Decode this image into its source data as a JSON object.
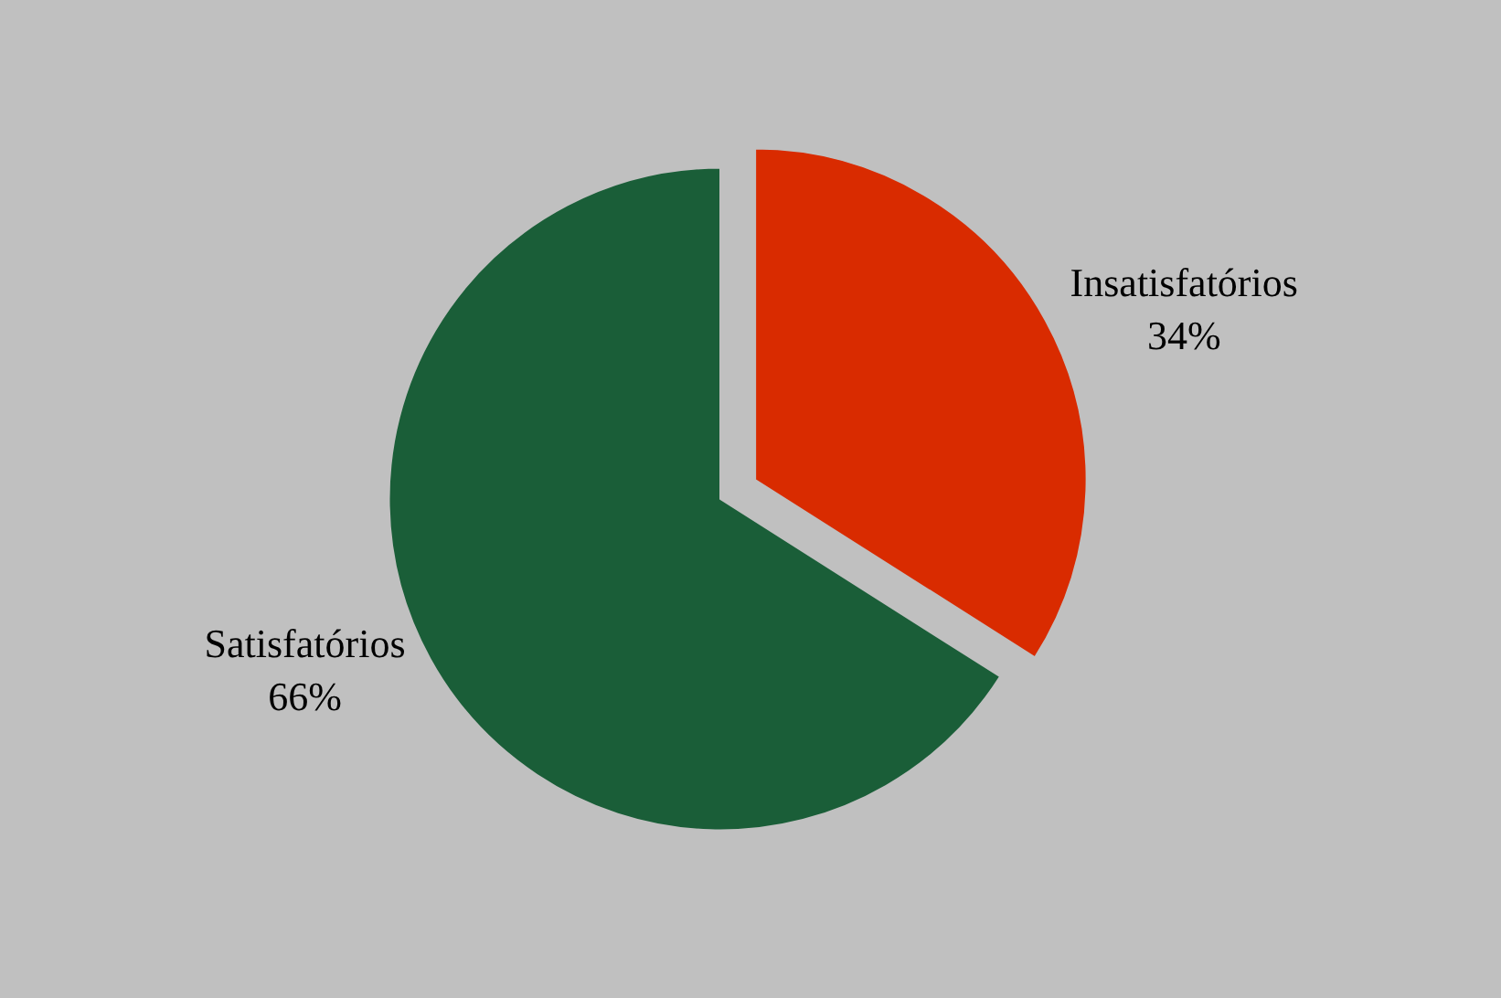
{
  "chart_data": {
    "type": "pie",
    "categories": [
      "Insatisfatórios",
      "Satisfatórios"
    ],
    "values": [
      34,
      66
    ],
    "colors": [
      "#d92b00",
      "#1a5e38"
    ],
    "value_labels": [
      "34%",
      "66%"
    ],
    "legend": false
  }
}
